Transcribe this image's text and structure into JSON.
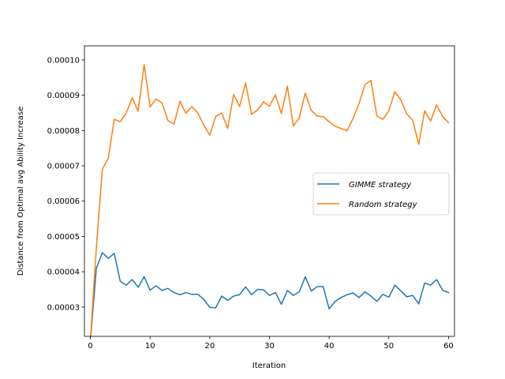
{
  "chart_data": {
    "type": "line",
    "title": "",
    "xlabel": "Iteration",
    "ylabel": "Distance from Optimal avg Ability Increase",
    "xlim": [
      -1,
      61
    ],
    "ylim": [
      2.17e-05,
      0.000104
    ],
    "xticks": [
      0,
      10,
      20,
      30,
      40,
      50,
      60
    ],
    "yticks": [
      3e-05,
      4e-05,
      5e-05,
      6e-05,
      7e-05,
      8e-05,
      9e-05,
      0.0001
    ],
    "ytick_labels": [
      "0.00003",
      "0.00004",
      "0.00005",
      "0.00006",
      "0.00007",
      "0.00008",
      "0.00009",
      "0.00010"
    ],
    "legend_position": "center-right",
    "grid": false,
    "x": [
      0,
      1,
      2,
      3,
      4,
      5,
      6,
      7,
      8,
      9,
      10,
      11,
      12,
      13,
      14,
      15,
      16,
      17,
      18,
      19,
      20,
      21,
      22,
      23,
      24,
      25,
      26,
      27,
      28,
      29,
      30,
      31,
      32,
      33,
      34,
      35,
      36,
      37,
      38,
      39,
      40,
      41,
      42,
      43,
      44,
      45,
      46,
      47,
      48,
      49,
      50,
      51,
      52,
      53,
      54,
      55,
      56,
      57,
      58,
      59,
      60
    ],
    "series": [
      {
        "name": "GIMME strategy",
        "color": "#1f77b4",
        "values": [
          2.05e-05,
          4.1e-05,
          4.54e-05,
          4.38e-05,
          4.52e-05,
          3.73e-05,
          3.62e-05,
          3.78e-05,
          3.56e-05,
          3.86e-05,
          3.48e-05,
          3.6e-05,
          3.47e-05,
          3.53e-05,
          3.41e-05,
          3.35e-05,
          3.41e-05,
          3.36e-05,
          3.36e-05,
          3.22e-05,
          2.99e-05,
          2.98e-05,
          3.31e-05,
          3.19e-05,
          3.31e-05,
          3.35e-05,
          3.57e-05,
          3.35e-05,
          3.5e-05,
          3.49e-05,
          3.33e-05,
          3.41e-05,
          3.08e-05,
          3.47e-05,
          3.33e-05,
          3.43e-05,
          3.86e-05,
          3.45e-05,
          3.58e-05,
          3.58e-05,
          2.95e-05,
          3.16e-05,
          3.27e-05,
          3.35e-05,
          3.4e-05,
          3.27e-05,
          3.43e-05,
          3.31e-05,
          3.16e-05,
          3.36e-05,
          3.28e-05,
          3.62e-05,
          3.46e-05,
          3.29e-05,
          3.33e-05,
          3.09e-05,
          3.68e-05,
          3.62e-05,
          3.78e-05,
          3.48e-05,
          3.41e-05
        ]
      },
      {
        "name": "Random strategy",
        "color": "#ff7f0e",
        "values": [
          2.05e-05,
          4.7e-05,
          6.9e-05,
          7.22e-05,
          8.32e-05,
          8.25e-05,
          8.49e-05,
          8.93e-05,
          8.55e-05,
          9.87e-05,
          8.67e-05,
          8.89e-05,
          8.78e-05,
          8.28e-05,
          8.18e-05,
          8.83e-05,
          8.49e-05,
          8.68e-05,
          8.5e-05,
          8.15e-05,
          7.87e-05,
          8.4e-05,
          8.5e-05,
          8.06e-05,
          9.02e-05,
          8.68e-05,
          9.35e-05,
          8.46e-05,
          8.58e-05,
          8.81e-05,
          8.69e-05,
          9.01e-05,
          8.48e-05,
          9.26e-05,
          8.13e-05,
          8.36e-05,
          9.06e-05,
          8.57e-05,
          8.41e-05,
          8.39e-05,
          8.25e-05,
          8.12e-05,
          8.06e-05,
          7.99e-05,
          8.34e-05,
          8.76e-05,
          9.3e-05,
          9.42e-05,
          8.41e-05,
          8.32e-05,
          8.56e-05,
          9.1e-05,
          8.87e-05,
          8.47e-05,
          8.29e-05,
          7.61e-05,
          8.56e-05,
          8.27e-05,
          8.73e-05,
          8.4e-05,
          8.22e-05
        ]
      }
    ]
  }
}
